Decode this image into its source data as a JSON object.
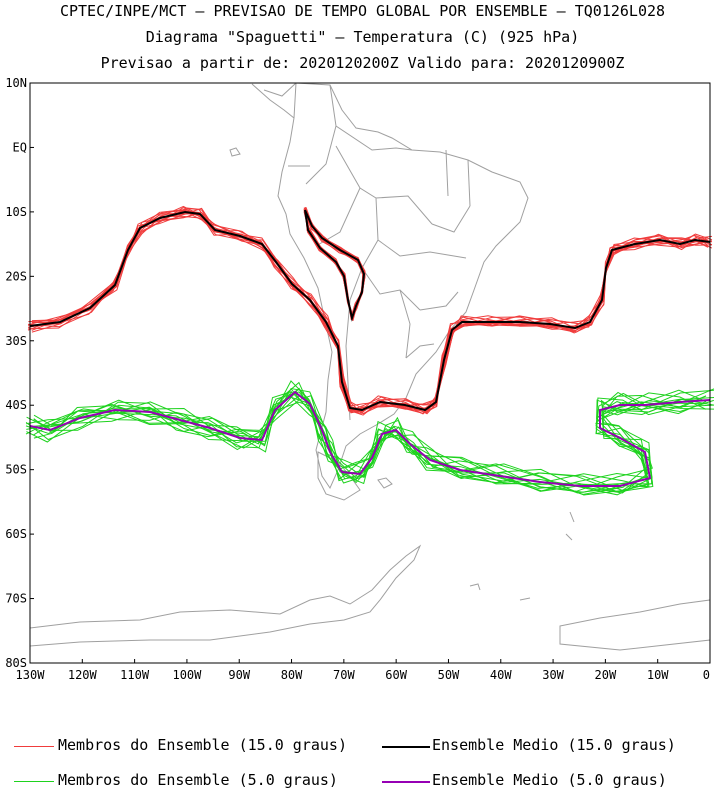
{
  "titles": {
    "line1": "CPTEC/INPE/MCT – PREVISAO DE TEMPO GLOBAL POR ENSEMBLE – TQ0126L028",
    "line2": "Diagrama \"Spaguetti\" – Temperatura (C) (925 hPa)",
    "line3": "Previsao a partir de: 2020120200Z  Valido para: 2020120900Z"
  },
  "axes": {
    "lat_labels": [
      "10N",
      "EQ",
      "10S",
      "20S",
      "30S",
      "40S",
      "50S",
      "60S",
      "70S",
      "80S"
    ],
    "lon_labels": [
      "130W",
      "120W",
      "110W",
      "100W",
      "90W",
      "80W",
      "70W",
      "60W",
      "50W",
      "40W",
      "30W",
      "20W",
      "10W",
      "0"
    ]
  },
  "colors": {
    "red_members": "#f03c3c",
    "black_mean": "#000000",
    "green_members": "#1ed21e",
    "purple_mean": "#9600b4",
    "coast": "#a0a0a0"
  },
  "legend": {
    "item1": "Membros do Ensemble (15.0 graus)",
    "item2": "Ensemble Medio (15.0 graus)",
    "item3": "Membros do Ensemble (5.0 graus)",
    "item4": "Ensemble Medio (5.0 graus)"
  }
}
